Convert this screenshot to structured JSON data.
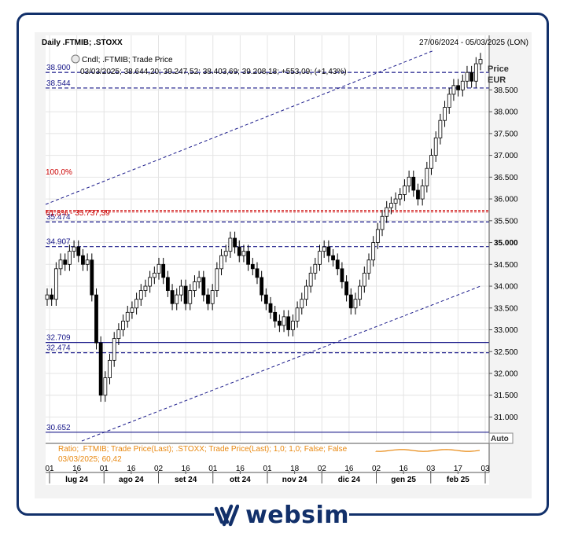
{
  "header": {
    "title": "Daily .FTMIB; .STOXX",
    "range": "27/06/2024 - 05/03/2025 (LON)",
    "legend_label": "Cndl; .FTMIB; Trade Price",
    "legend_values": "03/03/2025; 38.644,20; 39.247,52; 38.403,69; 39.208,18; +553,09; (+1,43%)"
  },
  "price_axis": {
    "title": "Price",
    "unit": "EUR",
    "auto_label": "Auto"
  },
  "ratio_panel": {
    "label": "Ratio; .FTMIB; Trade Price(Last); .STOXX; Trade Price(Last);  1,0; 1,0; False; False",
    "sub": "03/03/2025; 60,42"
  },
  "fib": {
    "pct100": "100,0%",
    "pct618": "61,8% - 35.737,39"
  },
  "levels": [
    {
      "label": "38.900",
      "value": 38900,
      "style": "dash"
    },
    {
      "label": "38.544",
      "value": 38544,
      "style": "dash"
    },
    {
      "label": "35.474",
      "value": 35474,
      "style": "dash"
    },
    {
      "label": "34.907",
      "value": 34907,
      "style": "dash"
    },
    {
      "label": "32.709",
      "value": 32709,
      "style": "solid"
    },
    {
      "label": "32.474",
      "value": 32474,
      "style": "dash"
    },
    {
      "label": "30.652",
      "value": 30652,
      "style": "solid"
    }
  ],
  "brand": {
    "name": "websim"
  },
  "colors": {
    "candle": "#000000",
    "level": "#1a1a8a",
    "fib": "#cc0000",
    "channel": "#1a1a8a",
    "ratio": "#e8870e",
    "frame": "#12306a"
  },
  "chart_data": {
    "type": "candlestick",
    "title": "Daily .FTMIB; .STOXX",
    "ylabel": "Price EUR",
    "ylim": [
      30450,
      39750
    ],
    "y_ticks": [
      "31.000",
      "31.500",
      "32.000",
      "32.500",
      "33.000",
      "33.500",
      "34.000",
      "34.500",
      "35.000",
      "35.500",
      "36.000",
      "36.500",
      "37.000",
      "37.500",
      "38.000",
      "38.500"
    ],
    "y_tick_values": [
      31000,
      31500,
      32000,
      32500,
      33000,
      33500,
      34000,
      34500,
      35000,
      35500,
      36000,
      36500,
      37000,
      37500,
      38000,
      38500
    ],
    "x_day_ticks": [
      "01",
      "16",
      "01",
      "16",
      "02",
      "16",
      "01",
      "16",
      "01",
      "18",
      "02",
      "16",
      "02",
      "16",
      "03",
      "17",
      "03"
    ],
    "x_months": [
      "lug 24",
      "ago 24",
      "set 24",
      "ott 24",
      "nov 24",
      "dic 24",
      "gen 25",
      "feb 25"
    ],
    "close_series": [
      33800,
      33700,
      34400,
      34600,
      34500,
      34800,
      34900,
      34700,
      34500,
      34600,
      33800,
      32700,
      31500,
      31900,
      32300,
      32800,
      33000,
      33200,
      33400,
      33500,
      33700,
      33900,
      34000,
      34200,
      34300,
      34500,
      34200,
      33900,
      33600,
      33800,
      34000,
      33600,
      33900,
      34100,
      34200,
      33800,
      33600,
      33900,
      34400,
      34700,
      34800,
      35100,
      34900,
      34700,
      34800,
      34500,
      34400,
      34200,
      33800,
      33600,
      33400,
      33200,
      33100,
      33300,
      33000,
      33200,
      33500,
      33700,
      34000,
      34300,
      34500,
      34800,
      34900,
      34700,
      34600,
      34400,
      34100,
      33800,
      33500,
      33700,
      34000,
      34300,
      34600,
      35000,
      35300,
      35600,
      35800,
      35900,
      36000,
      36100,
      36300,
      36500,
      36200,
      36000,
      36300,
      36700,
      37000,
      37400,
      37800,
      38100,
      38400,
      38600,
      38500,
      38700,
      38900,
      38700,
      39100,
      39200
    ],
    "ratio_last": "60,42",
    "fib_618": "35.737,39",
    "last_candle": {
      "date": "03/03/2025",
      "open": "38.644,20",
      "high": "39.247,52",
      "low": "38.403,69",
      "close": "39.208,18",
      "change": "+553,09",
      "change_pct": "+1,43%"
    }
  }
}
